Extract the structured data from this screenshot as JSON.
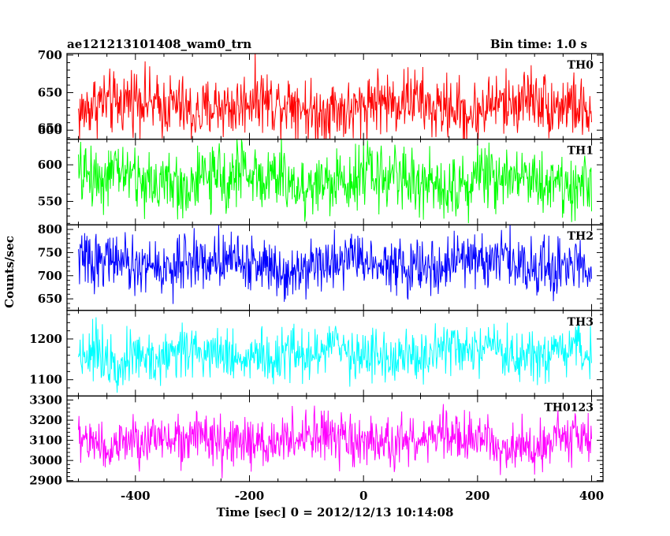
{
  "chart_data": {
    "type": "line",
    "title": "ae121213101408_wam0_trn",
    "title_right": "Bin time: 1.0 s",
    "xlabel": "Time [sec] 0 = 2012/12/13 10:14:08",
    "ylabel": "Counts/sec",
    "xlim": [
      -520,
      420
    ],
    "x_range": [
      -500,
      400
    ],
    "x_step": 1,
    "xticks": [
      -400,
      -200,
      0,
      200,
      400
    ],
    "grid": false,
    "panels": [
      {
        "name": "TH0",
        "color": "#ff0000",
        "ylim": [
          588,
          702
        ],
        "yticks": [
          600,
          650,
          700
        ],
        "mean": 633,
        "amplitude": 32
      },
      {
        "name": "TH1",
        "color": "#00ff00",
        "ylim": [
          518,
          635
        ],
        "yticks": [
          550,
          600,
          650
        ],
        "mean": 580,
        "amplitude": 33
      },
      {
        "name": "TH2",
        "color": "#0000ff",
        "ylim": [
          625,
          810
        ],
        "yticks": [
          650,
          700,
          750,
          800
        ],
        "mean": 727,
        "amplitude": 45
      },
      {
        "name": "TH3",
        "color": "#00ffff",
        "ylim": [
          1060,
          1270
        ],
        "yticks": [
          1100,
          1200
        ],
        "mean": 1162,
        "amplitude": 50
      },
      {
        "name": "TH0123",
        "color": "#ff00ff",
        "ylim": [
          2895,
          3320
        ],
        "yticks": [
          2900,
          3000,
          3100,
          3200,
          3300
        ],
        "mean": 3097,
        "amplitude": 95
      }
    ]
  }
}
